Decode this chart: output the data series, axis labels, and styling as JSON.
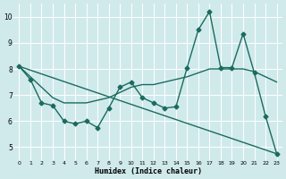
{
  "xlabel": "Humidex (Indice chaleur)",
  "bg_color": "#d0eaec",
  "grid_color": "#ffffff",
  "line_color": "#1a6b5e",
  "xlim": [
    -0.5,
    23.5
  ],
  "ylim": [
    4.5,
    10.5
  ],
  "yticks": [
    5,
    6,
    7,
    8,
    9,
    10
  ],
  "line1_x": [
    0,
    1,
    2,
    3,
    4,
    5,
    6,
    7,
    8,
    9,
    10,
    11,
    12,
    13,
    14,
    15,
    16,
    17,
    18,
    19,
    20,
    21,
    22,
    23
  ],
  "line1_y": [
    8.1,
    7.6,
    6.7,
    6.6,
    6.0,
    5.9,
    6.0,
    5.75,
    6.5,
    7.3,
    7.5,
    6.9,
    6.7,
    6.5,
    6.55,
    8.05,
    9.5,
    10.2,
    8.05,
    8.05,
    9.35,
    7.85,
    6.2,
    4.75
  ],
  "line2_x": [
    0,
    1,
    2,
    3,
    4,
    5,
    6,
    7,
    8,
    9,
    10,
    11,
    12,
    13,
    14,
    15,
    16,
    17,
    18,
    19,
    20,
    21,
    22,
    23
  ],
  "line2_y": [
    8.1,
    7.7,
    7.3,
    6.9,
    6.7,
    6.7,
    6.7,
    6.8,
    6.9,
    7.1,
    7.3,
    7.4,
    7.4,
    7.5,
    7.6,
    7.7,
    7.85,
    8.0,
    8.0,
    8.0,
    8.0,
    7.9,
    7.7,
    7.5
  ],
  "line3_x": [
    0,
    23
  ],
  "line3_y": [
    8.1,
    4.75
  ],
  "marker_size": 2.5,
  "linewidth": 1.0
}
